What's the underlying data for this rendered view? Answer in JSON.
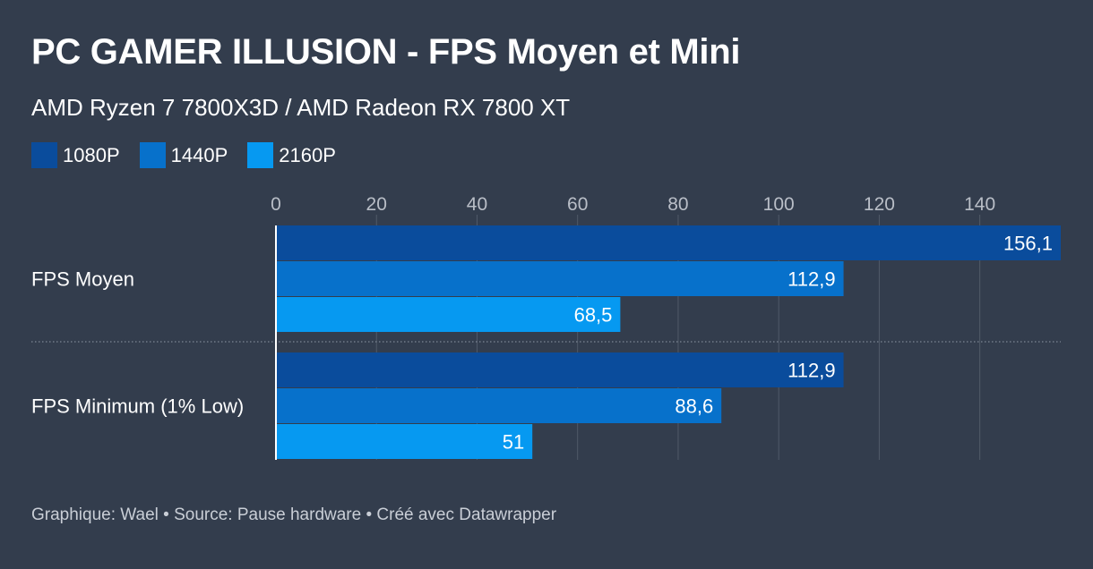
{
  "header": {
    "title": "PC GAMER ILLUSION - FPS Moyen et Mini",
    "subtitle": "AMD Ryzen 7 7800X3D / AMD Radeon RX 7800 XT"
  },
  "legend": [
    {
      "label": "1080P",
      "color": "#0a4c9c"
    },
    {
      "label": "1440P",
      "color": "#0771cb"
    },
    {
      "label": "2160P",
      "color": "#0699f1"
    }
  ],
  "chart_data": {
    "type": "bar",
    "orientation": "horizontal",
    "title": "PC GAMER ILLUSION - FPS Moyen et Mini",
    "subtitle": "AMD Ryzen 7 7800X3D / AMD Radeon RX 7800 XT",
    "categories": [
      "FPS Moyen",
      "FPS Minimum (1% Low)"
    ],
    "series": [
      {
        "name": "1080P",
        "values": [
          156.1,
          112.9
        ],
        "labels": [
          "156,1",
          "112,9"
        ],
        "color": "#0a4c9c"
      },
      {
        "name": "1440P",
        "values": [
          112.9,
          88.6
        ],
        "labels": [
          "112,9",
          "88,6"
        ],
        "color": "#0771cb"
      },
      {
        "name": "2160P",
        "values": [
          68.5,
          51
        ],
        "labels": [
          "68,5",
          "51"
        ],
        "color": "#0699f1"
      }
    ],
    "xticks": [
      0,
      20,
      40,
      60,
      80,
      100,
      120,
      140
    ],
    "xlim": [
      0,
      156.1
    ],
    "grid": true,
    "legend_position": "top-left"
  },
  "footer": {
    "text": "Graphique: Wael • Source: Pause hardware • Créé avec Datawrapper"
  }
}
